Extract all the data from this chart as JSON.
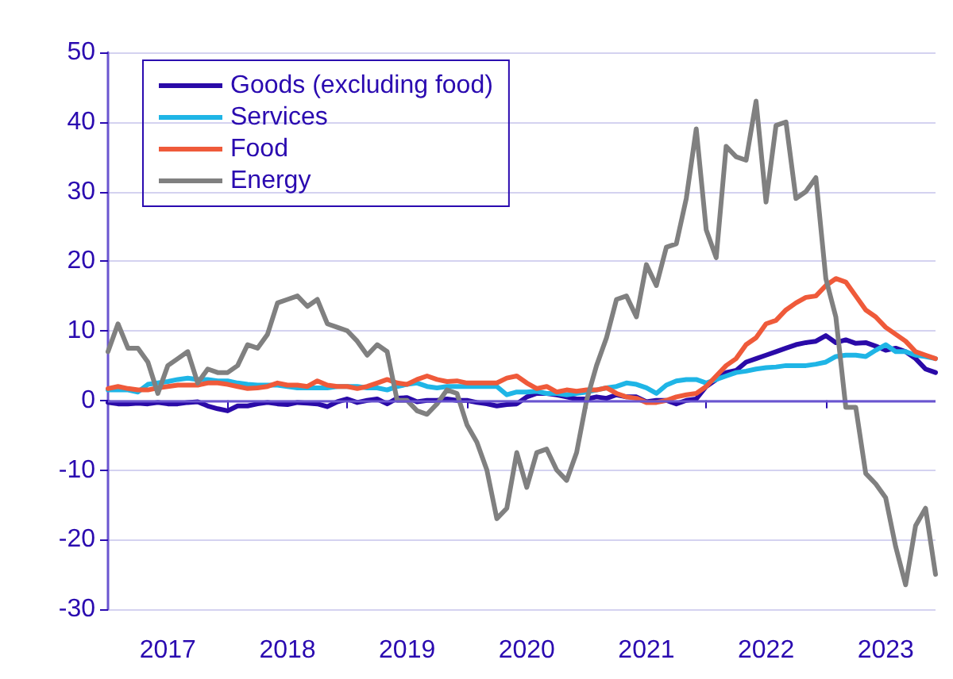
{
  "chart_data": {
    "type": "line",
    "categories": [
      null,
      null,
      null,
      null,
      null,
      null,
      "2017",
      null,
      null,
      null,
      null,
      null,
      null,
      null,
      null,
      null,
      null,
      null,
      "2018",
      null,
      null,
      null,
      null,
      null,
      null,
      null,
      null,
      null,
      null,
      null,
      "2019",
      null,
      null,
      null,
      null,
      null,
      null,
      null,
      null,
      null,
      null,
      null,
      "2020",
      null,
      null,
      null,
      null,
      null,
      null,
      null,
      null,
      null,
      null,
      null,
      "2021",
      null,
      null,
      null,
      null,
      null,
      null,
      null,
      null,
      null,
      null,
      null,
      "2022",
      null,
      null,
      null,
      null,
      null,
      null,
      null,
      null,
      null,
      null,
      null,
      "2023",
      null,
      null,
      null,
      null,
      null
    ],
    "series": [
      {
        "name": "Goods (excluding food)",
        "color": "#2a0aa8",
        "values": [
          -0.3,
          -0.5,
          -0.5,
          -0.4,
          -0.5,
          -0.3,
          -0.5,
          -0.5,
          -0.3,
          -0.2,
          -0.8,
          -1.2,
          -1.5,
          -0.8,
          -0.8,
          -0.5,
          -0.3,
          -0.5,
          -0.6,
          -0.3,
          -0.4,
          -0.5,
          -0.9,
          -0.2,
          0.2,
          -0.3,
          0,
          0.2,
          -0.5,
          0.3,
          0.4,
          -0.2,
          0,
          0,
          0.2,
          0,
          0,
          -0.3,
          -0.5,
          -0.8,
          -0.6,
          -0.5,
          0.5,
          1,
          1,
          0.8,
          0.5,
          0.2,
          0.2,
          0.5,
          0.3,
          0.8,
          0.5,
          0.5,
          -0.2,
          0,
          0,
          -0.5,
          0,
          0.2,
          2,
          3,
          4,
          4.3,
          5.5,
          6,
          6.5,
          7,
          7.5,
          8,
          8.3,
          8.5,
          9.3,
          8.3,
          8.7,
          8.2,
          8.3,
          7.8,
          7.2,
          7.5,
          7,
          6,
          4.5,
          4
        ]
      },
      {
        "name": "Services",
        "color": "#1fb5e6",
        "values": [
          1.5,
          1.5,
          1.5,
          1.2,
          2.3,
          2.5,
          2.7,
          3,
          3.2,
          3,
          3,
          2.8,
          2.8,
          2.5,
          2.3,
          2.2,
          2.2,
          2.2,
          2,
          1.8,
          1.8,
          1.8,
          1.8,
          2,
          2,
          2,
          1.8,
          1.8,
          1.5,
          2,
          2.3,
          2.5,
          2,
          1.8,
          2,
          2,
          2,
          2,
          2,
          2,
          0.8,
          1.2,
          1.2,
          1.3,
          1,
          1,
          0.8,
          1,
          1.2,
          1.5,
          1.8,
          2,
          2.5,
          2.3,
          1.8,
          1,
          2.2,
          2.8,
          3,
          3,
          2.5,
          3,
          3.5,
          4,
          4.2,
          4.5,
          4.7,
          4.8,
          5,
          5,
          5,
          5.2,
          5.5,
          6.3,
          6.5,
          6.5,
          6.3,
          7.2,
          8,
          7,
          7,
          6.5,
          6.3,
          6
        ]
      },
      {
        "name": "Food",
        "color": "#ef5a3a",
        "values": [
          1.7,
          2,
          1.7,
          1.5,
          1.5,
          1.8,
          2,
          2.2,
          2.2,
          2.2,
          2.5,
          2.5,
          2.3,
          2,
          1.7,
          1.8,
          2,
          2.5,
          2.2,
          2.2,
          2,
          2.8,
          2.2,
          2,
          2,
          1.7,
          2,
          2.5,
          3,
          2.5,
          2.3,
          3,
          3.5,
          3,
          2.7,
          2.8,
          2.5,
          2.5,
          2.5,
          2.5,
          3.2,
          3.5,
          2.5,
          1.7,
          2,
          1.2,
          1.5,
          1.3,
          1.5,
          1.5,
          1.8,
          1,
          0.5,
          0.3,
          -0.3,
          -0.3,
          0,
          0.5,
          0.8,
          1,
          2,
          3.5,
          5,
          6,
          8,
          9,
          11,
          11.5,
          13,
          14,
          14.8,
          15,
          16.5,
          17.5,
          17,
          15,
          13,
          12,
          10.5,
          9.5,
          8.5,
          7,
          6.5,
          6
        ]
      },
      {
        "name": "Energy",
        "color": "#808080",
        "values": [
          7,
          11,
          7.5,
          7.5,
          5.5,
          1,
          5,
          6,
          7,
          2.5,
          4.5,
          4,
          4,
          5,
          8,
          7.5,
          9.5,
          14,
          14.5,
          15,
          13.5,
          14.5,
          11,
          10.5,
          10,
          8.5,
          6.5,
          8,
          7,
          0,
          0,
          -1.5,
          -2,
          -0.5,
          1.5,
          1,
          -3.5,
          -6,
          -10,
          -17,
          -15.5,
          -7.5,
          -12.5,
          -7.5,
          -7,
          -10,
          -11.5,
          -7.5,
          0,
          5,
          9,
          14.5,
          15,
          12,
          19.5,
          16.5,
          22,
          22.5,
          29,
          39,
          24.5,
          20.5,
          36.5,
          35,
          34.5,
          43,
          28.5,
          39.5,
          40,
          29,
          30,
          32,
          17.5,
          12,
          -1,
          -1,
          -10.5,
          -12,
          -14,
          -21,
          -26.5,
          -18,
          -15.5,
          -25
        ]
      }
    ],
    "ylim": [
      -30,
      50
    ],
    "yticks": [
      -30,
      -20,
      -10,
      0,
      10,
      20,
      30,
      40,
      50
    ],
    "ref_lines": [
      {
        "axis": "y",
        "value": 0,
        "color": "#6a55d0"
      }
    ],
    "grid": "y",
    "legend": "top left",
    "line_style": "solid",
    "marker": "none"
  }
}
